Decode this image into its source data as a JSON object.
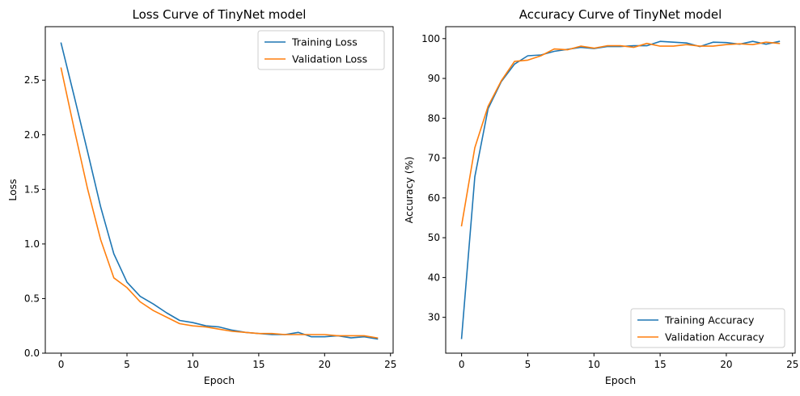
{
  "chart_data": [
    {
      "type": "line",
      "title": "Loss Curve of TinyNet model",
      "xlabel": "Epoch",
      "ylabel": "Loss",
      "xlim": [
        -1.2,
        25.2
      ],
      "ylim": [
        0.0,
        2.99
      ],
      "xticks": [
        0,
        5,
        10,
        15,
        20,
        25
      ],
      "xtick_labels": [
        "0",
        "5",
        "10",
        "15",
        "20",
        "25"
      ],
      "yticks": [
        0.0,
        0.5,
        1.0,
        1.5,
        2.0,
        2.5
      ],
      "ytick_labels": [
        "0.0",
        "0.5",
        "1.0",
        "1.5",
        "2.0",
        "2.5"
      ],
      "grid": false,
      "legend_position": "top-right",
      "x": [
        0,
        1,
        2,
        3,
        4,
        5,
        6,
        7,
        8,
        9,
        10,
        11,
        12,
        13,
        14,
        15,
        16,
        17,
        18,
        19,
        20,
        21,
        22,
        23,
        24
      ],
      "series": [
        {
          "name": "Training Loss",
          "color": "#1f77b4",
          "values": [
            2.84,
            2.35,
            1.85,
            1.34,
            0.91,
            0.65,
            0.52,
            0.45,
            0.37,
            0.3,
            0.28,
            0.25,
            0.24,
            0.21,
            0.19,
            0.18,
            0.17,
            0.17,
            0.19,
            0.15,
            0.15,
            0.16,
            0.14,
            0.15,
            0.13
          ]
        },
        {
          "name": "Validation Loss",
          "color": "#ff7f0e",
          "values": [
            2.61,
            2.05,
            1.51,
            1.04,
            0.69,
            0.6,
            0.47,
            0.39,
            0.33,
            0.27,
            0.25,
            0.24,
            0.22,
            0.2,
            0.19,
            0.18,
            0.18,
            0.17,
            0.17,
            0.17,
            0.17,
            0.16,
            0.16,
            0.16,
            0.14
          ]
        }
      ]
    },
    {
      "type": "line",
      "title": "Accuracy Curve of TinyNet model",
      "xlabel": "Epoch",
      "ylabel": "Accuracy (%)",
      "xlim": [
        -1.2,
        25.2
      ],
      "ylim": [
        21.0,
        103.0
      ],
      "xticks": [
        0,
        5,
        10,
        15,
        20,
        25
      ],
      "xtick_labels": [
        "0",
        "5",
        "10",
        "15",
        "20",
        "25"
      ],
      "yticks": [
        30,
        40,
        50,
        60,
        70,
        80,
        90,
        100
      ],
      "ytick_labels": [
        "30",
        "40",
        "50",
        "60",
        "70",
        "80",
        "90",
        "100"
      ],
      "grid": false,
      "legend_position": "bottom-right",
      "x": [
        0,
        1,
        2,
        3,
        4,
        5,
        6,
        7,
        8,
        9,
        10,
        11,
        12,
        13,
        14,
        15,
        16,
        17,
        18,
        19,
        20,
        21,
        22,
        23,
        24
      ],
      "series": [
        {
          "name": "Training Accuracy",
          "color": "#1f77b4",
          "values": [
            24.7,
            65.3,
            82.4,
            89.2,
            93.6,
            95.7,
            95.9,
            96.8,
            97.3,
            97.8,
            97.5,
            98.0,
            98.0,
            98.2,
            98.2,
            99.3,
            99.1,
            98.9,
            98.0,
            99.1,
            99.0,
            98.6,
            99.3,
            98.6,
            99.3
          ]
        },
        {
          "name": "Validation Accuracy",
          "color": "#ff7f0e",
          "values": [
            53.0,
            72.6,
            83.0,
            89.4,
            94.3,
            94.6,
            95.7,
            97.4,
            97.2,
            98.1,
            97.6,
            98.2,
            98.2,
            97.8,
            98.8,
            98.1,
            98.1,
            98.5,
            98.1,
            98.1,
            98.5,
            98.7,
            98.5,
            99.1,
            98.8
          ]
        }
      ]
    }
  ]
}
